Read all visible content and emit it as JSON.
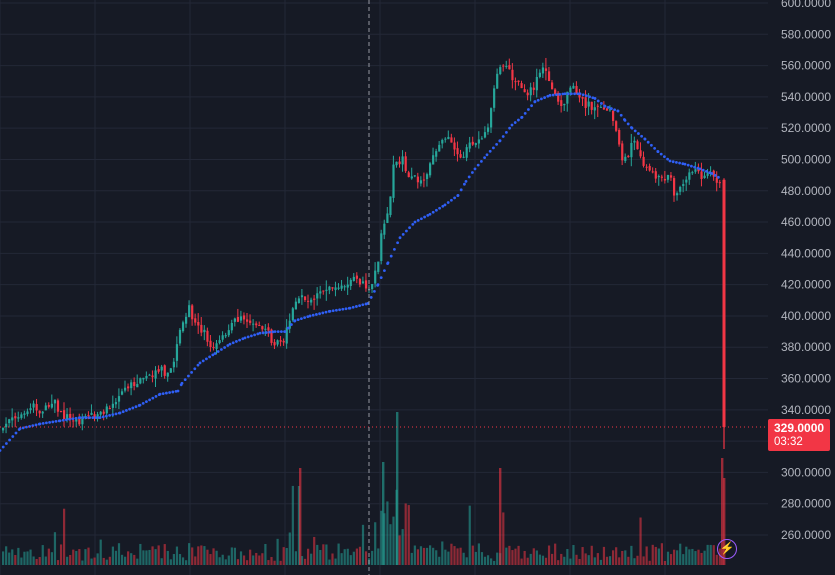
{
  "chart_data": {
    "type": "candlestick",
    "ylim": [
      250,
      600
    ],
    "grid": true,
    "axis_side": "right",
    "y_ticks": [
      "260.0000",
      "280.0000",
      "300.0000",
      "320.0000",
      "340.0000",
      "360.0000",
      "380.0000",
      "400.0000",
      "420.0000",
      "440.0000",
      "460.0000",
      "480.0000",
      "500.0000",
      "520.0000",
      "540.0000",
      "560.0000",
      "580.0000",
      "600.0000"
    ],
    "tick_values": [
      260,
      280,
      300,
      320,
      340,
      360,
      380,
      400,
      420,
      440,
      460,
      480,
      500,
      520,
      540,
      560,
      580,
      600
    ],
    "current_price": 329.0,
    "current_price_label": "329.0000",
    "countdown": "03:32",
    "colors": {
      "up": "#26a69a",
      "down": "#f23645",
      "trend_line": "#2f5ff5",
      "background": "#161a25",
      "grid": "#232837",
      "axis_text": "#b2b5be"
    },
    "price_path": [
      [
        0,
        326
      ],
      [
        8,
        330
      ],
      [
        15,
        335
      ],
      [
        25,
        337
      ],
      [
        35,
        342
      ],
      [
        45,
        338
      ],
      [
        55,
        345
      ],
      [
        62,
        340
      ],
      [
        70,
        336
      ],
      [
        80,
        333
      ],
      [
        90,
        335
      ],
      [
        100,
        338
      ],
      [
        110,
        342
      ],
      [
        120,
        346
      ],
      [
        130,
        352
      ],
      [
        140,
        358
      ],
      [
        150,
        361
      ],
      [
        160,
        364
      ],
      [
        170,
        366
      ],
      [
        178,
        370
      ],
      [
        184,
        395
      ],
      [
        192,
        405
      ],
      [
        200,
        395
      ],
      [
        208,
        388
      ],
      [
        216,
        380
      ],
      [
        225,
        385
      ],
      [
        235,
        397
      ],
      [
        245,
        398
      ],
      [
        255,
        393
      ],
      [
        262,
        393
      ],
      [
        270,
        392
      ],
      [
        275,
        383
      ],
      [
        282,
        380
      ],
      [
        290,
        390
      ],
      [
        296,
        408
      ],
      [
        305,
        412
      ],
      [
        315,
        410
      ],
      [
        325,
        415
      ],
      [
        335,
        418
      ],
      [
        345,
        420
      ],
      [
        355,
        426
      ],
      [
        365,
        420
      ],
      [
        372,
        417
      ],
      [
        380,
        430
      ],
      [
        385,
        455
      ],
      [
        392,
        470
      ],
      [
        397,
        497
      ],
      [
        405,
        500
      ],
      [
        412,
        490
      ],
      [
        420,
        485
      ],
      [
        430,
        490
      ],
      [
        438,
        505
      ],
      [
        446,
        515
      ],
      [
        454,
        510
      ],
      [
        462,
        500
      ],
      [
        470,
        508
      ],
      [
        478,
        510
      ],
      [
        486,
        515
      ],
      [
        492,
        522
      ],
      [
        497,
        545
      ],
      [
        503,
        560
      ],
      [
        510,
        562
      ],
      [
        516,
        550
      ],
      [
        522,
        548
      ],
      [
        530,
        540
      ],
      [
        538,
        548
      ],
      [
        546,
        558
      ],
      [
        553,
        548
      ],
      [
        560,
        538
      ],
      [
        568,
        536
      ],
      [
        575,
        548
      ],
      [
        583,
        540
      ],
      [
        590,
        535
      ],
      [
        598,
        532
      ],
      [
        605,
        530
      ],
      [
        612,
        532
      ],
      [
        618,
        525
      ],
      [
        624,
        500
      ],
      [
        630,
        505
      ],
      [
        638,
        510
      ],
      [
        645,
        500
      ],
      [
        652,
        495
      ],
      [
        658,
        488
      ],
      [
        665,
        486
      ],
      [
        672,
        492
      ],
      [
        678,
        478
      ],
      [
        685,
        485
      ],
      [
        692,
        490
      ],
      [
        700,
        492
      ],
      [
        708,
        490
      ],
      [
        715,
        490
      ],
      [
        720,
        485
      ]
    ],
    "trend_dots": [
      [
        0,
        314
      ],
      [
        20,
        328
      ],
      [
        40,
        331
      ],
      [
        60,
        333
      ],
      [
        80,
        335
      ],
      [
        100,
        335
      ],
      [
        120,
        338
      ],
      [
        140,
        343
      ],
      [
        160,
        350
      ],
      [
        178,
        352
      ],
      [
        182,
        357
      ],
      [
        200,
        370
      ],
      [
        215,
        376
      ],
      [
        230,
        382
      ],
      [
        245,
        386
      ],
      [
        260,
        389
      ],
      [
        275,
        390
      ],
      [
        285,
        390
      ],
      [
        295,
        397
      ],
      [
        310,
        400
      ],
      [
        330,
        403
      ],
      [
        350,
        405
      ],
      [
        368,
        408
      ],
      [
        378,
        420
      ],
      [
        388,
        434
      ],
      [
        400,
        450
      ],
      [
        415,
        460
      ],
      [
        430,
        465
      ],
      [
        445,
        471
      ],
      [
        458,
        477
      ],
      [
        466,
        486
      ],
      [
        475,
        494
      ],
      [
        487,
        503
      ],
      [
        500,
        512
      ],
      [
        512,
        522
      ],
      [
        522,
        527
      ],
      [
        535,
        537
      ],
      [
        550,
        541
      ],
      [
        565,
        542
      ],
      [
        580,
        542
      ],
      [
        595,
        539
      ],
      [
        605,
        534
      ],
      [
        618,
        531
      ],
      [
        625,
        525
      ],
      [
        632,
        520
      ],
      [
        645,
        513
      ],
      [
        658,
        505
      ],
      [
        670,
        499
      ],
      [
        685,
        497
      ],
      [
        700,
        494
      ],
      [
        712,
        491
      ],
      [
        720,
        488
      ]
    ],
    "last_candle": {
      "open": 487,
      "high": 488,
      "low": 315,
      "close": 329
    }
  }
}
